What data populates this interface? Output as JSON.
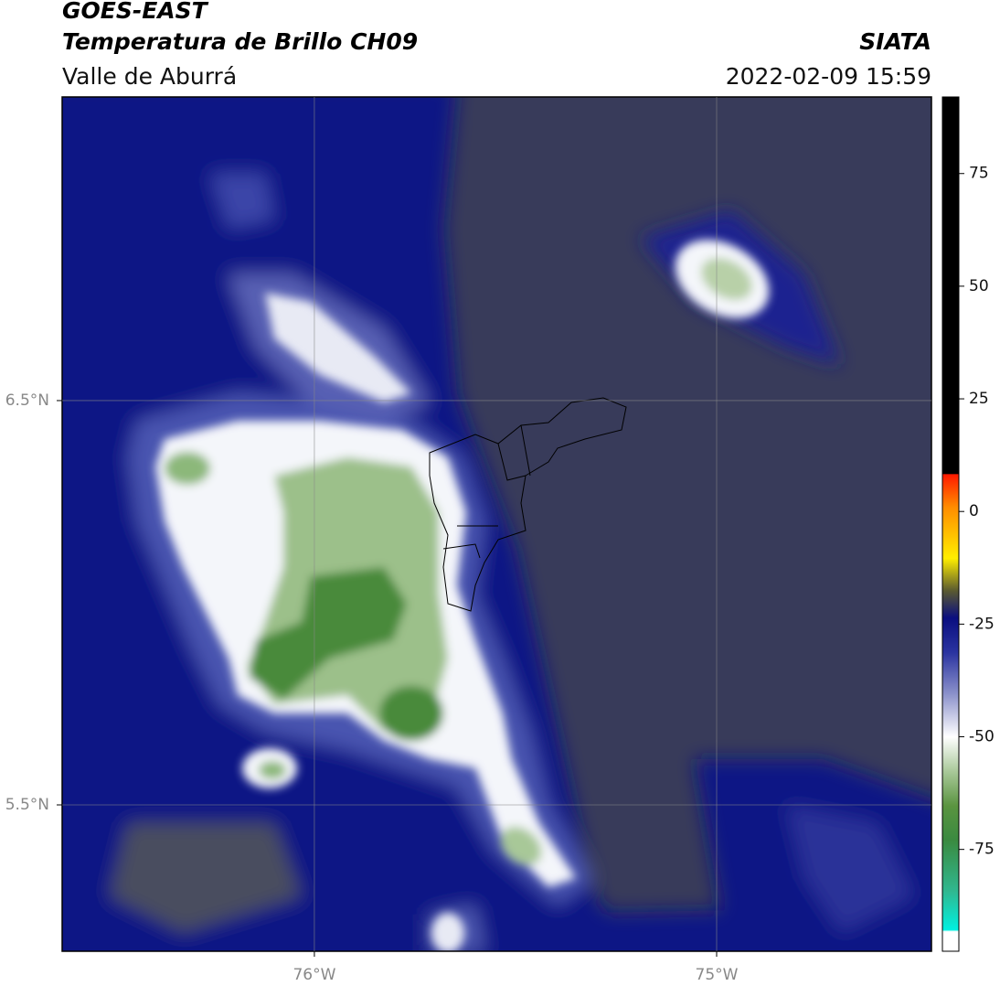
{
  "header": {
    "title": "GOES-EAST",
    "subtitle": "Temperatura de Brillo CH09",
    "region": "Valle de Aburrá",
    "source": "SIATA",
    "timestamp": "2022-02-09 15:59"
  },
  "map": {
    "xlim": [
      -76.627,
      -74.466
    ],
    "ylim": [
      5.138,
      7.251
    ],
    "xticks": [
      {
        "value": -76,
        "label": "76°W"
      },
      {
        "value": -75,
        "label": "75°W"
      }
    ],
    "yticks": [
      {
        "value": 6.5,
        "label": "6.5°N"
      },
      {
        "value": 5.5,
        "label": "5.5°N"
      }
    ],
    "grid": true
  },
  "colorbar": {
    "lim": [
      -97.6,
      92
    ],
    "ticks": [
      75,
      50,
      25,
      0,
      -25,
      -50,
      -75
    ]
  }
}
